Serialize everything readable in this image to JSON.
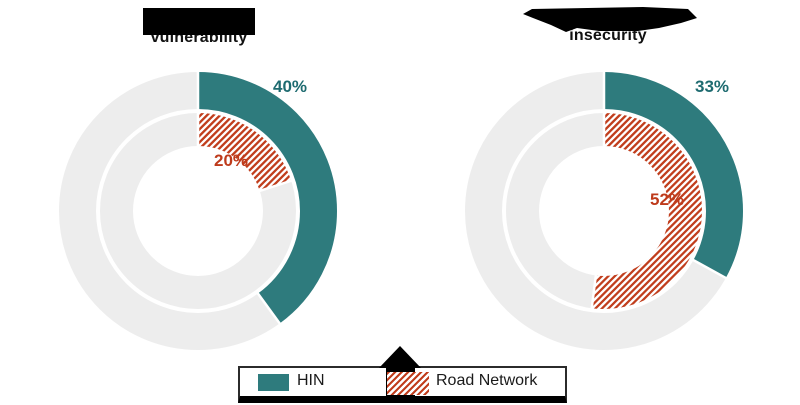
{
  "chart_data": [
    {
      "type": "pie",
      "variant": "concentric-double-ring-donut",
      "title_visible": "vulnerability",
      "title_partially_redacted": true,
      "start_angle_deg": 0,
      "direction": "clockwise",
      "rings": [
        {
          "legend": "HIN",
          "position": "outer",
          "value_pct": 40,
          "label": "40%",
          "fill": "solid"
        },
        {
          "legend": "Road Network",
          "position": "inner",
          "value_pct": 20,
          "label": "20%",
          "fill": "hatch"
        }
      ]
    },
    {
      "type": "pie",
      "variant": "concentric-double-ring-donut",
      "title_visible": "insecurity",
      "title_partially_redacted": true,
      "start_angle_deg": 0,
      "direction": "clockwise",
      "rings": [
        {
          "legend": "HIN",
          "position": "outer",
          "value_pct": 33,
          "label": "33%",
          "fill": "solid"
        },
        {
          "legend": "Road Network",
          "position": "inner",
          "value_pct": 52,
          "label": "52%",
          "fill": "hatch"
        }
      ]
    }
  ],
  "legend": {
    "items": [
      {
        "label": "HIN",
        "swatch": "solid-teal"
      },
      {
        "label": "Road Network",
        "swatch": "orange-diagonal-hatch"
      }
    ]
  },
  "colors": {
    "teal": "#2E7B7D",
    "teal_text": "#1E6B70",
    "orange": "#C13E1D",
    "orange_text": "#BE3A1B",
    "track": "#EDEDED",
    "redaction": "#000000",
    "legend_border": "#2b2b2b",
    "background": "#FFFFFF"
  }
}
